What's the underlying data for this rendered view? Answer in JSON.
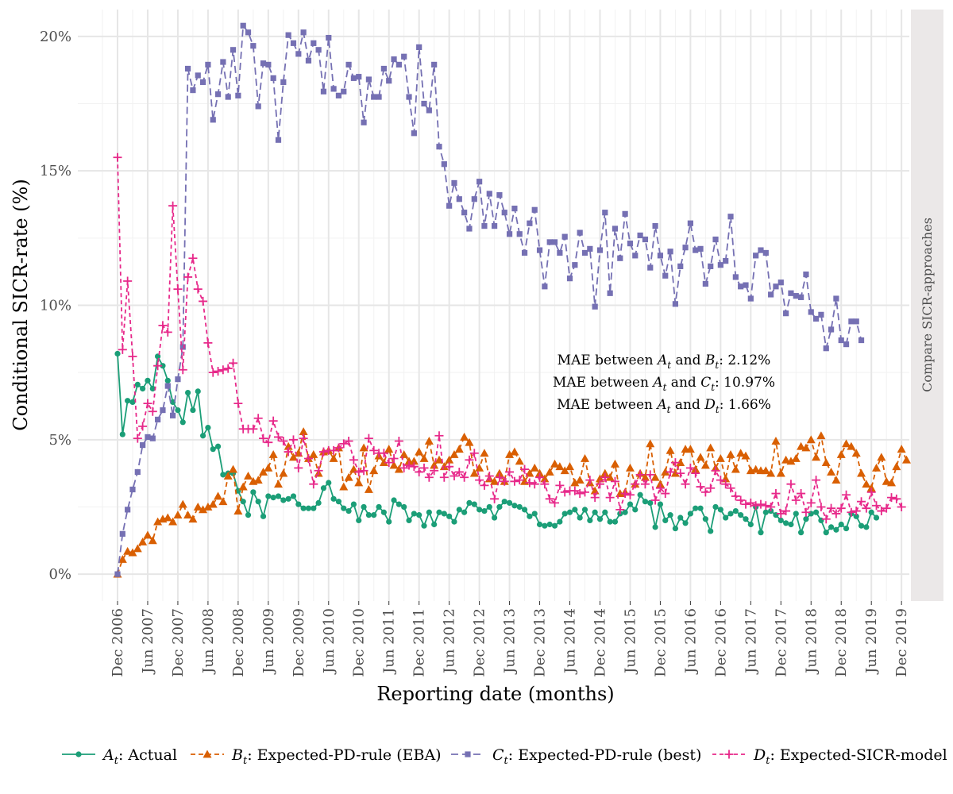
{
  "chart_data": {
    "type": "line",
    "ylabel": "Conditional SICR-rate (%)",
    "xlabel": "Reporting date (months)",
    "facet_label": "Compare SICR-approaches",
    "y_tick_labels": [
      "0%",
      "5%",
      "10%",
      "15%",
      "20%"
    ],
    "y_ticks": [
      0,
      5,
      10,
      15,
      20
    ],
    "ylim": [
      -1,
      21
    ],
    "x_tick_labels": [
      "Dec 2006",
      "Jun 2007",
      "Dec 2007",
      "Jun 2008",
      "Dec 2008",
      "Jun 2009",
      "Dec 2009",
      "Jun 2010",
      "Dec 2010",
      "Jun 2011",
      "Dec 2011",
      "Jun 2012",
      "Dec 2012",
      "Jun 2013",
      "Dec 2013",
      "Jun 2014",
      "Dec 2014",
      "Jun 2015",
      "Dec 2015",
      "Jun 2016",
      "Dec 2016",
      "Jun 2017",
      "Dec 2017",
      "Jun 2018",
      "Dec 2018",
      "Jun 2019",
      "Dec 2019"
    ],
    "x_start": "Dec 2006",
    "x_step": "1 month",
    "grid": true,
    "legend_position": "bottom",
    "annotations": [
      {
        "prefix": "MAE between ",
        "a": "A",
        "mid": " and ",
        "b": "B",
        "sub": "t",
        "suffix": ": 2.12%"
      },
      {
        "prefix": "MAE between ",
        "a": "A",
        "mid": " and ",
        "b": "C",
        "sub": "t",
        "suffix": ": 10.97%"
      },
      {
        "prefix": "MAE between ",
        "a": "A",
        "mid": " and ",
        "b": "D",
        "sub": "t",
        "suffix": ": 1.66%"
      }
    ],
    "series": [
      {
        "symbol": "A",
        "sub": "t",
        "name": ": Actual",
        "color": "#1b9e77",
        "marker": "circle",
        "dash": "",
        "values": [
          8.2,
          5.2,
          6.45,
          6.4,
          7.05,
          6.9,
          7.2,
          6.9,
          8.1,
          7.75,
          7.2,
          6.4,
          6.1,
          5.65,
          6.75,
          6.1,
          6.8,
          5.15,
          5.45,
          4.65,
          4.75,
          3.7,
          3.75,
          3.75,
          3.1,
          2.7,
          2.2,
          3.05,
          2.7,
          2.15,
          2.9,
          2.85,
          2.9,
          2.75,
          2.8,
          2.9,
          2.6,
          2.45,
          2.45,
          2.45,
          2.65,
          3.2,
          3.4,
          2.8,
          2.7,
          2.45,
          2.35,
          2.6,
          2.0,
          2.5,
          2.2,
          2.2,
          2.5,
          2.3,
          1.95,
          2.75,
          2.6,
          2.5,
          2.0,
          2.25,
          2.2,
          1.8,
          2.3,
          1.85,
          2.3,
          2.25,
          2.15,
          1.95,
          2.4,
          2.3,
          2.65,
          2.6,
          2.4,
          2.35,
          2.5,
          2.1,
          2.5,
          2.7,
          2.65,
          2.55,
          2.5,
          2.4,
          2.15,
          2.25,
          1.85,
          1.8,
          1.85,
          1.8,
          1.95,
          2.25,
          2.3,
          2.4,
          2.1,
          2.4,
          2.0,
          2.3,
          2.05,
          2.3,
          1.95,
          1.95,
          2.25,
          2.3,
          2.6,
          2.4,
          2.95,
          2.7,
          2.65,
          1.75,
          2.6,
          2.0,
          2.2,
          1.7,
          2.1,
          1.9,
          2.25,
          2.45,
          2.45,
          2.05,
          1.6,
          2.5,
          2.4,
          2.1,
          2.25,
          2.35,
          2.2,
          2.05,
          1.85,
          2.5,
          1.55,
          2.3,
          2.35,
          2.2,
          2.0,
          1.9,
          1.85,
          2.25,
          1.55,
          2.05,
          2.25,
          2.3,
          2.0,
          1.55,
          1.75,
          1.65,
          1.85,
          1.7,
          2.25,
          2.15,
          1.8,
          1.75,
          2.3,
          2.1
        ]
      },
      {
        "symbol": "B",
        "sub": "t",
        "name": ": Expected-PD-rule (EBA)",
        "color": "#d95f02",
        "marker": "triangle",
        "dash": "6,4",
        "values": [
          0.0,
          0.55,
          0.85,
          0.8,
          0.95,
          1.2,
          1.45,
          1.25,
          1.95,
          2.05,
          2.1,
          1.95,
          2.2,
          2.6,
          2.2,
          2.05,
          2.5,
          2.4,
          2.5,
          2.6,
          2.9,
          2.7,
          3.65,
          3.9,
          2.35,
          3.25,
          3.65,
          3.45,
          3.5,
          3.8,
          3.95,
          4.45,
          3.35,
          3.75,
          4.75,
          4.35,
          4.5,
          5.3,
          4.3,
          4.45,
          3.75,
          4.55,
          4.6,
          4.3,
          4.7,
          3.25,
          3.6,
          3.9,
          3.4,
          4.7,
          3.15,
          3.85,
          4.4,
          4.15,
          4.65,
          4.05,
          3.9,
          4.45,
          4.2,
          4.2,
          4.55,
          4.3,
          4.95,
          4.05,
          4.25,
          4.0,
          4.25,
          4.45,
          4.65,
          5.1,
          4.9,
          3.75,
          3.95,
          4.5,
          3.55,
          3.45,
          3.75,
          3.45,
          4.45,
          4.55,
          4.2,
          3.45,
          3.75,
          3.95,
          3.75,
          3.55,
          3.8,
          4.1,
          4.0,
          3.85,
          4.0,
          3.4,
          3.5,
          4.3,
          3.4,
          3.1,
          3.55,
          3.75,
          3.6,
          4.1,
          3.0,
          3.05,
          3.95,
          3.35,
          3.75,
          3.6,
          4.85,
          3.6,
          3.35,
          3.8,
          4.6,
          3.75,
          4.15,
          4.65,
          4.65,
          3.9,
          4.35,
          4.05,
          4.7,
          3.95,
          4.3,
          3.55,
          4.45,
          3.9,
          4.5,
          4.4,
          3.85,
          3.9,
          3.85,
          3.85,
          3.75,
          4.95,
          3.75,
          4.25,
          4.2,
          4.3,
          4.75,
          4.7,
          5.0,
          4.35,
          5.15,
          4.15,
          3.8,
          3.5,
          4.45,
          4.85,
          4.75,
          4.5,
          3.75,
          3.35,
          3.2,
          3.95,
          4.35,
          3.45,
          3.4,
          4.0,
          4.65,
          4.25
        ]
      },
      {
        "symbol": "C",
        "sub": "t",
        "name": ": Expected-PD-rule (best)",
        "color": "#7570b3",
        "marker": "square",
        "dash": "9,5",
        "values": [
          0.0,
          1.5,
          2.4,
          3.15,
          3.8,
          4.8,
          5.1,
          5.05,
          5.75,
          6.1,
          7.0,
          5.9,
          7.25,
          8.45,
          18.8,
          18.0,
          18.55,
          18.3,
          18.95,
          16.9,
          17.85,
          19.05,
          17.75,
          19.5,
          17.8,
          20.4,
          20.15,
          19.65,
          17.4,
          19.0,
          18.95,
          18.45,
          16.15,
          18.3,
          20.05,
          19.75,
          19.35,
          20.15,
          19.1,
          19.75,
          19.5,
          17.95,
          19.95,
          18.05,
          17.8,
          17.95,
          18.95,
          18.45,
          18.5,
          16.8,
          18.4,
          17.75,
          17.75,
          18.8,
          18.35,
          19.15,
          18.95,
          19.25,
          17.75,
          16.4,
          19.6,
          17.5,
          17.25,
          18.95,
          15.9,
          15.25,
          13.7,
          14.55,
          13.95,
          13.45,
          12.85,
          13.95,
          14.6,
          12.95,
          14.15,
          12.95,
          14.1,
          13.45,
          12.65,
          13.6,
          12.65,
          11.95,
          13.05,
          13.55,
          12.05,
          10.7,
          12.35,
          12.35,
          11.95,
          12.55,
          11.0,
          11.5,
          12.7,
          11.95,
          12.1,
          9.95,
          12.05,
          13.45,
          10.45,
          12.85,
          11.75,
          13.4,
          12.3,
          11.85,
          12.6,
          12.45,
          11.4,
          12.95,
          11.85,
          11.1,
          12.0,
          10.05,
          11.45,
          12.15,
          13.05,
          12.05,
          12.1,
          10.8,
          11.45,
          12.45,
          11.5,
          11.65,
          13.3,
          11.05,
          10.7,
          10.75,
          10.25,
          11.85,
          12.05,
          11.95,
          10.4,
          10.7,
          10.85,
          9.7,
          10.45,
          10.35,
          10.3,
          11.15,
          9.75,
          9.5,
          9.65,
          8.4,
          9.1,
          10.25,
          8.7,
          8.55,
          9.4,
          9.4,
          8.7
        ]
      },
      {
        "symbol": "D",
        "sub": "t",
        "name": ": Expected-SICR-model",
        "color": "#e7298a",
        "marker": "plus",
        "dash": "5,4",
        "values": [
          15.5,
          8.35,
          10.9,
          8.1,
          5.05,
          5.5,
          6.35,
          6.05,
          7.75,
          9.25,
          9.0,
          13.7,
          10.6,
          7.6,
          11.05,
          11.75,
          10.6,
          10.15,
          8.6,
          7.5,
          7.55,
          7.6,
          7.65,
          7.85,
          6.35,
          5.4,
          5.4,
          5.4,
          5.8,
          5.05,
          4.9,
          5.7,
          5.1,
          4.95,
          4.55,
          5.0,
          3.95,
          5.05,
          4.3,
          3.35,
          3.85,
          4.55,
          4.6,
          4.6,
          4.7,
          4.85,
          4.95,
          4.25,
          3.8,
          3.85,
          5.05,
          4.6,
          4.5,
          4.5,
          4.15,
          4.3,
          4.95,
          3.95,
          4.05,
          4.0,
          3.8,
          3.95,
          3.6,
          3.85,
          5.15,
          3.6,
          4.0,
          3.65,
          3.8,
          3.6,
          4.25,
          4.5,
          3.5,
          3.3,
          3.65,
          2.8,
          3.6,
          3.45,
          3.8,
          3.45,
          3.5,
          3.9,
          3.4,
          3.35,
          3.6,
          3.35,
          2.8,
          2.65,
          3.3,
          3.05,
          3.1,
          3.1,
          3.0,
          3.05,
          3.5,
          2.85,
          3.35,
          3.6,
          2.85,
          3.45,
          2.4,
          3.0,
          2.95,
          3.35,
          3.7,
          3.35,
          3.7,
          2.75,
          3.2,
          3.0,
          3.8,
          4.15,
          3.75,
          3.35,
          3.95,
          3.75,
          3.25,
          3.05,
          3.2,
          3.85,
          3.5,
          3.35,
          3.2,
          2.9,
          2.75,
          2.6,
          2.65,
          2.55,
          2.6,
          2.55,
          2.5,
          3.0,
          2.25,
          2.35,
          3.35,
          2.75,
          3.0,
          2.3,
          2.65,
          3.5,
          2.5,
          2.05,
          2.45,
          2.25,
          2.45,
          2.95,
          2.3,
          2.35,
          2.7,
          2.45,
          3.05,
          2.55,
          2.35,
          2.45,
          2.85,
          2.8,
          2.5
        ]
      }
    ]
  }
}
